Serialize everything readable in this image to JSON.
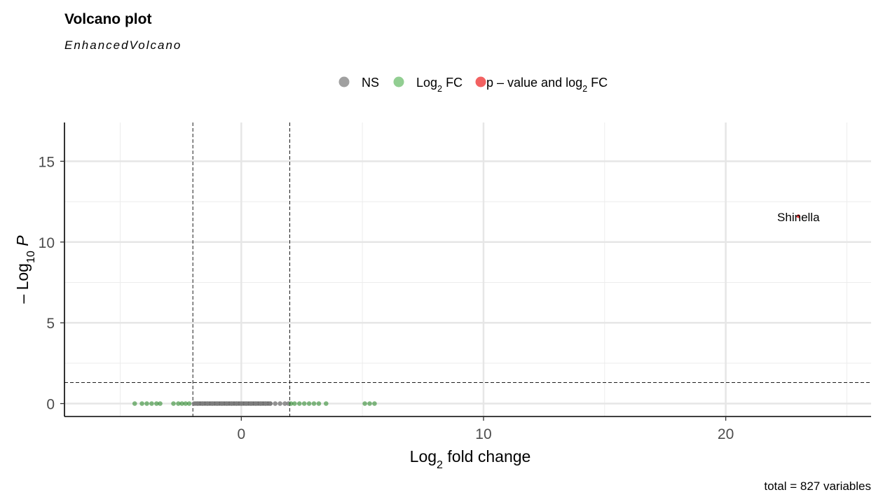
{
  "chart_data": {
    "type": "scatter",
    "title": "Volcano plot",
    "subtitle": "EnhancedVolcano",
    "xlabel": {
      "base": "Log",
      "sub": "2",
      "rest": " fold change"
    },
    "ylabel": {
      "prefix": "– Log",
      "sub": "10",
      "italic": " P"
    },
    "xlim": [
      -7.3,
      26
    ],
    "ylim": [
      -0.8,
      17.4
    ],
    "x_ticks": [
      0,
      10,
      20
    ],
    "y_ticks": [
      0,
      5,
      10,
      15
    ],
    "x_tick_labels": [
      "0",
      "10",
      "20"
    ],
    "y_tick_labels": [
      "0",
      "5",
      "10",
      "15"
    ],
    "grid": true,
    "legend_position": "top",
    "thresholds": {
      "fc_low": -2,
      "fc_high": 2,
      "p_line": 1.3
    },
    "caption": "total = 827 variables",
    "colors": {
      "NS": "#808080",
      "FC": "#6ebd6e",
      "FC_strong": "#2e8b2e",
      "P_FC": "#ee2c2c"
    },
    "legend": [
      {
        "key": "NS",
        "parts": [
          {
            "t": "NS"
          }
        ],
        "color": "#808080"
      },
      {
        "key": "FC",
        "parts": [
          {
            "t": "Log"
          },
          {
            "t": "2",
            "sub": true
          },
          {
            "t": " FC"
          }
        ],
        "color": "#6ebd6e"
      },
      {
        "key": "P_FC",
        "parts": [
          {
            "t": "p – value and log"
          },
          {
            "t": "2",
            "sub": true
          },
          {
            "t": " FC"
          }
        ],
        "color": "#ee2c2c"
      }
    ],
    "series": [
      {
        "name": "NS",
        "x": [
          -1.95,
          -1.8,
          -1.6,
          -1.4,
          -1.2,
          -1.0,
          -0.8,
          -0.6,
          -0.4,
          -0.2,
          0.0,
          0.2,
          0.4,
          0.6,
          0.8,
          1.0,
          1.2,
          1.4,
          1.6,
          1.8,
          1.95
        ],
        "y": [
          0,
          0,
          0,
          0,
          0,
          0,
          0,
          0,
          0,
          0,
          0,
          0,
          0,
          0,
          0,
          0,
          0,
          0,
          0,
          0,
          0
        ]
      },
      {
        "name": "Log2 FC",
        "x": [
          -4.4,
          -4.1,
          -3.9,
          -3.7,
          -3.5,
          -3.35,
          -2.8,
          -2.6,
          -2.45,
          -2.3,
          -2.15,
          2.05,
          2.2,
          2.4,
          2.6,
          2.8,
          3.0,
          3.2,
          3.5,
          5.1,
          5.3,
          5.5
        ],
        "y": [
          0,
          0,
          0,
          0,
          0,
          0,
          0,
          0,
          0,
          0,
          0,
          0,
          0,
          0,
          0,
          0,
          0,
          0,
          0,
          0,
          0,
          0
        ]
      },
      {
        "name": "p - value and log2 FC",
        "x": [
          23.0
        ],
        "y": [
          11.6
        ]
      }
    ],
    "point_labels": [
      {
        "text": "Shinella",
        "x": 23.0,
        "y": 11.6
      }
    ]
  }
}
